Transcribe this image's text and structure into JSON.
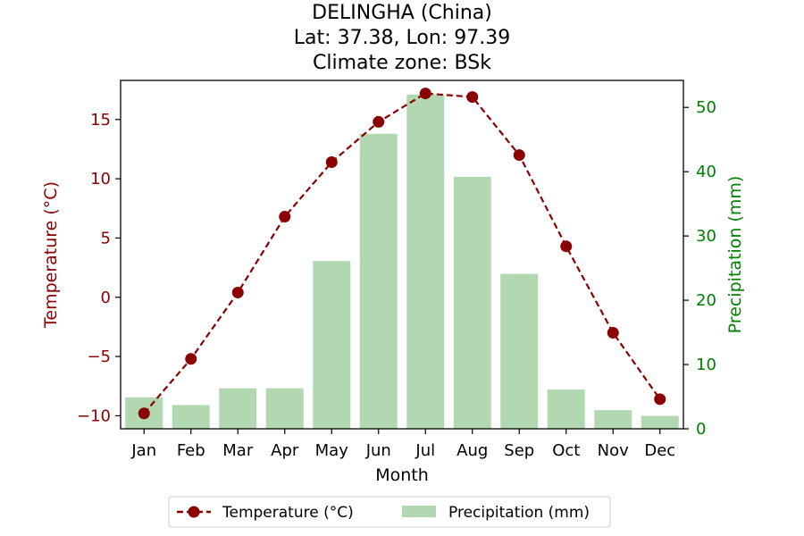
{
  "chart_data": {
    "type": "bar+line",
    "title_lines": [
      "DELINGHA (China)",
      "Lat: 37.38, Lon: 97.39",
      "Climate zone: BSk"
    ],
    "xlabel": "Month",
    "ylabel_left": "Temperature (°C)",
    "ylabel_right": "Precipitation (mm)",
    "categories": [
      "Jan",
      "Feb",
      "Mar",
      "Apr",
      "May",
      "Jun",
      "Jul",
      "Aug",
      "Sep",
      "Oct",
      "Nov",
      "Dec"
    ],
    "ylim_left": [
      -11.1,
      18.3
    ],
    "ylim_right": [
      0,
      54.2
    ],
    "yticks_left": [
      -10,
      -5,
      0,
      5,
      10,
      15
    ],
    "yticks_left_labels": [
      "−10",
      "−5",
      "0",
      "5",
      "10",
      "15"
    ],
    "yticks_right": [
      0,
      10,
      20,
      30,
      40,
      50
    ],
    "yticks_right_labels": [
      "0",
      "10",
      "20",
      "30",
      "40",
      "50"
    ],
    "grid": false,
    "legend_position": "bottom-center",
    "series": [
      {
        "name": "Temperature (°C)",
        "type": "line",
        "axis": "left",
        "color": "#8b0000",
        "line_style": "dashed",
        "marker": "circle",
        "values": [
          -9.8,
          -5.2,
          0.4,
          6.8,
          11.4,
          14.8,
          17.2,
          16.9,
          12.0,
          4.3,
          -3.0,
          -8.6
        ]
      },
      {
        "name": "Precipitation (mm)",
        "type": "bar",
        "axis": "right",
        "color": "#b2d8b2",
        "values": [
          4.9,
          3.7,
          6.3,
          6.3,
          26.1,
          45.9,
          52.0,
          39.2,
          24.1,
          6.1,
          2.9,
          2.0
        ]
      }
    ],
    "colors": {
      "left_axis": "#8b0000",
      "right_axis": "#008000"
    }
  }
}
